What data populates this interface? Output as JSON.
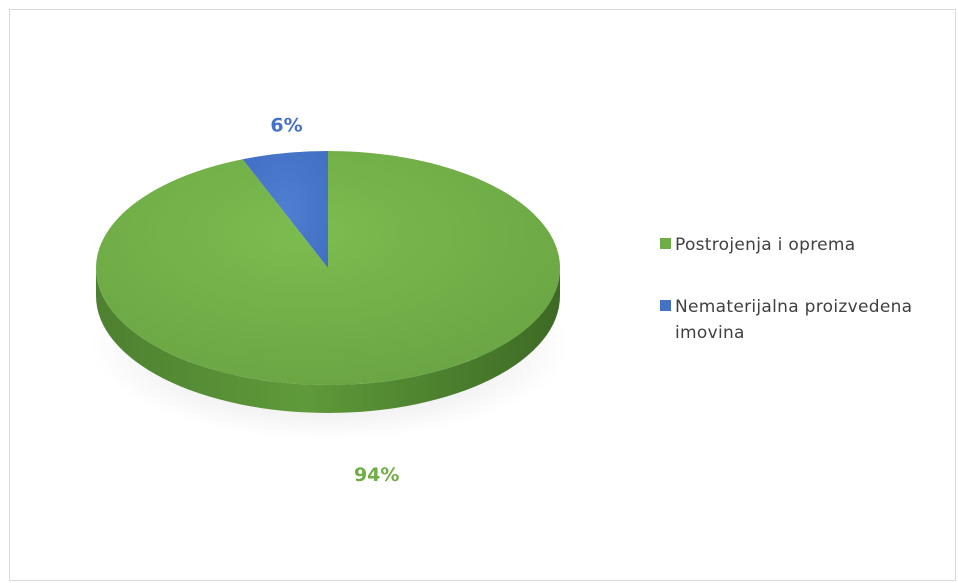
{
  "chart_data": {
    "type": "pie",
    "style": "3d",
    "categories": [
      "Postrojenja i oprema",
      "Nematerijalna proizvedena imovina"
    ],
    "values": [
      94,
      6
    ],
    "unit": "%",
    "data_labels": [
      "94%",
      "6%"
    ],
    "colors": [
      "#70ad47",
      "#4472c4"
    ],
    "title": "",
    "legend_position": "right"
  }
}
